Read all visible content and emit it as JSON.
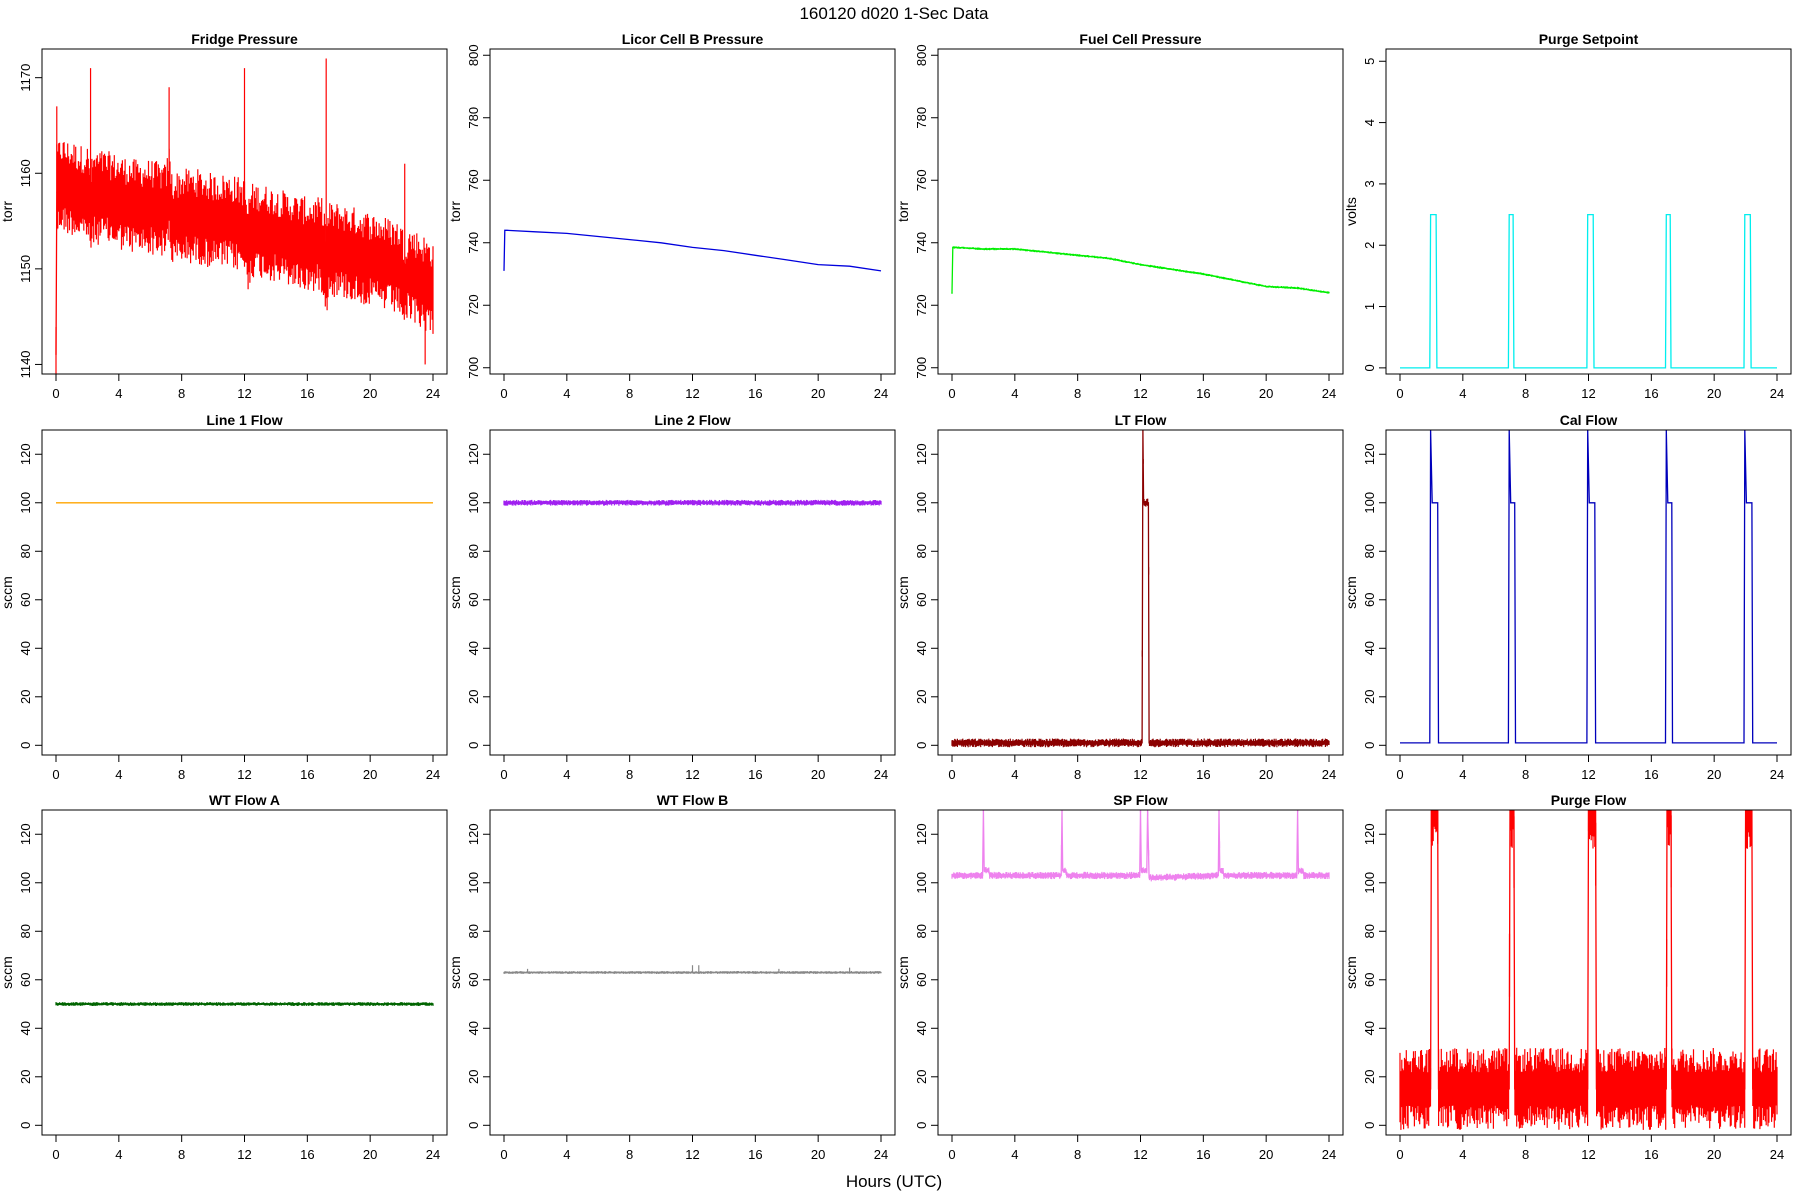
{
  "figure": {
    "title": "160120    d020    1-Sec Data",
    "xlabel": "Hours (UTC)"
  },
  "chart_data": [
    {
      "type": "line",
      "title": "Fridge Pressure",
      "ylabel": "torr",
      "color": "#ff0000",
      "xlim": [
        0,
        24
      ],
      "ylim": [
        1139,
        1173
      ],
      "yticks": [
        1140,
        1150,
        1160,
        1170
      ],
      "x": [
        0,
        0.05,
        0.3,
        0.7,
        1,
        1.5,
        2,
        2.2,
        2.4,
        3,
        4,
        5,
        6,
        7,
        7.2,
        7.4,
        8,
        9,
        10,
        11,
        12,
        12.2,
        12.4,
        13,
        14,
        15,
        16,
        17,
        17.2,
        17.4,
        18,
        19,
        20,
        21,
        22,
        22.2,
        22.4,
        23,
        23.5,
        24
      ],
      "y": [
        1141,
        1158,
        1159,
        1158.5,
        1158.5,
        1158,
        1158,
        1156,
        1157.5,
        1157.5,
        1157,
        1156.5,
        1156.5,
        1156,
        1158,
        1155,
        1155.5,
        1155.5,
        1155,
        1155,
        1154.5,
        1152,
        1154,
        1154,
        1153.5,
        1153,
        1152.5,
        1152.5,
        1150,
        1152,
        1152,
        1151.5,
        1151,
        1150.5,
        1150,
        1148,
        1149.5,
        1149,
        1148.5,
        1148
      ],
      "band": 5,
      "spikes": [
        [
          2.2,
          1171
        ],
        [
          7.2,
          1169
        ],
        [
          12,
          1171
        ],
        [
          17.2,
          1172
        ],
        [
          22.2,
          1161
        ],
        [
          23.5,
          1140
        ],
        [
          0.05,
          1167
        ]
      ]
    },
    {
      "type": "line",
      "title": "Licor Cell B Pressure",
      "ylabel": "torr",
      "color": "#0000dd",
      "xlim": [
        0,
        24
      ],
      "ylim": [
        698,
        802
      ],
      "yticks": [
        700,
        720,
        740,
        760,
        780,
        800
      ],
      "x": [
        0,
        0.05,
        0.2,
        2,
        4,
        6,
        8,
        10,
        12,
        14,
        16,
        18,
        20,
        22,
        24
      ],
      "y": [
        731,
        744,
        744,
        743.5,
        743,
        742,
        741,
        740,
        738.5,
        737.5,
        736,
        734.5,
        733,
        732.5,
        731
      ],
      "band": 0
    },
    {
      "type": "line",
      "title": "Fuel Cell Pressure",
      "ylabel": "torr",
      "color": "#00ee00",
      "xlim": [
        0,
        24
      ],
      "ylim": [
        698,
        802
      ],
      "yticks": [
        700,
        720,
        740,
        760,
        780,
        800
      ],
      "x": [
        0,
        0.05,
        0.2,
        2,
        4,
        6,
        8,
        10,
        12,
        14,
        16,
        18,
        20,
        22,
        24
      ],
      "y": [
        724,
        738.5,
        738.5,
        738,
        738,
        737,
        736,
        735,
        733,
        731.5,
        730,
        728,
        726,
        725.5,
        724
      ],
      "band": 0.4
    },
    {
      "type": "line",
      "title": "Purge Setpoint",
      "ylabel": "volts",
      "color": "#00eeee",
      "xlim": [
        0,
        24
      ],
      "ylim": [
        -0.1,
        5.2
      ],
      "yticks": [
        0,
        1,
        2,
        3,
        4,
        5
      ],
      "x": [
        0,
        1.9,
        1.95,
        2.3,
        2.35,
        6.9,
        6.95,
        7.2,
        7.25,
        11.9,
        11.95,
        12.3,
        12.35,
        16.9,
        16.95,
        17.2,
        17.25,
        21.9,
        21.95,
        22.3,
        22.35,
        24
      ],
      "y": [
        0,
        0,
        2.5,
        2.5,
        0,
        0,
        2.5,
        2.5,
        0,
        0,
        2.5,
        2.5,
        0,
        0,
        2.5,
        2.5,
        0,
        0,
        2.5,
        2.5,
        0,
        0
      ],
      "band": 0
    },
    {
      "type": "line",
      "title": "Line 1 Flow",
      "ylabel": "sccm",
      "color": "#ffa500",
      "xlim": [
        0,
        24
      ],
      "ylim": [
        -4,
        130
      ],
      "yticks": [
        0,
        20,
        40,
        60,
        80,
        100,
        120
      ],
      "x": [
        0,
        24
      ],
      "y": [
        100,
        100
      ],
      "band": 0
    },
    {
      "type": "line",
      "title": "Line 2 Flow",
      "ylabel": "sccm",
      "color": "#a020f0",
      "xlim": [
        0,
        24
      ],
      "ylim": [
        -4,
        130
      ],
      "yticks": [
        0,
        20,
        40,
        60,
        80,
        100,
        120
      ],
      "x": [
        0,
        24
      ],
      "y": [
        100,
        100
      ],
      "band": 1.2
    },
    {
      "type": "line",
      "title": "LT Flow",
      "ylabel": "sccm",
      "color": "#8b0000",
      "xlim": [
        0,
        24
      ],
      "ylim": [
        -4,
        130
      ],
      "yticks": [
        0,
        20,
        40,
        60,
        80,
        100,
        120
      ],
      "x": [
        0,
        12.1,
        12.15,
        12.2,
        12.5,
        12.55,
        24
      ],
      "y": [
        1,
        1,
        130,
        100,
        100,
        1,
        1
      ],
      "band": 1.8
    },
    {
      "type": "line",
      "title": "Cal Flow",
      "ylabel": "sccm",
      "color": "#0000bb",
      "xlim": [
        0,
        24
      ],
      "ylim": [
        -4,
        130
      ],
      "yticks": [
        0,
        20,
        40,
        60,
        80,
        100,
        120
      ],
      "x": [
        0,
        1.9,
        1.95,
        2.05,
        2.4,
        2.45,
        6.9,
        6.95,
        7.05,
        7.3,
        7.35,
        11.9,
        11.95,
        12.05,
        12.4,
        12.45,
        12.55,
        16.9,
        16.95,
        17.05,
        17.3,
        17.35,
        21.9,
        21.95,
        22.05,
        22.4,
        22.45,
        24
      ],
      "y": [
        1,
        1,
        130,
        100,
        100,
        1,
        1,
        130,
        100,
        100,
        1,
        1,
        130,
        100,
        100,
        1,
        1,
        1,
        130,
        100,
        100,
        1,
        1,
        130,
        100,
        100,
        1,
        1
      ],
      "band": 0
    },
    {
      "type": "line",
      "title": "WT Flow A",
      "ylabel": "sccm",
      "color": "#006400",
      "xlim": [
        0,
        24
      ],
      "ylim": [
        -4,
        130
      ],
      "yticks": [
        0,
        20,
        40,
        60,
        80,
        100,
        120
      ],
      "x": [
        0,
        24
      ],
      "y": [
        50,
        50
      ],
      "band": 0.8
    },
    {
      "type": "line",
      "title": "WT Flow B",
      "ylabel": "sccm",
      "color": "#888888",
      "xlim": [
        0,
        24
      ],
      "ylim": [
        -4,
        130
      ],
      "yticks": [
        0,
        20,
        40,
        60,
        80,
        100,
        120
      ],
      "x": [
        0,
        24
      ],
      "y": [
        63,
        63
      ],
      "band": 0.6,
      "spikes": [
        [
          12,
          66
        ],
        [
          12.4,
          66
        ],
        [
          22,
          65
        ],
        [
          1.5,
          64.5
        ],
        [
          17.5,
          64.5
        ]
      ]
    },
    {
      "type": "line",
      "title": "SP Flow",
      "ylabel": "sccm",
      "color": "#ee82ee",
      "xlim": [
        0,
        24
      ],
      "ylim": [
        -4,
        130
      ],
      "yticks": [
        0,
        20,
        40,
        60,
        80,
        100,
        120
      ],
      "x": [
        0,
        1.95,
        2.0,
        2.05,
        2.35,
        2.4,
        6.95,
        7.0,
        7.05,
        7.25,
        7.3,
        11.95,
        12.0,
        12.05,
        12.4,
        12.45,
        12.55,
        16.95,
        17.0,
        17.05,
        17.25,
        17.3,
        21.95,
        22.0,
        22.05,
        22.35,
        22.4,
        24
      ],
      "y": [
        103,
        103,
        130,
        105,
        105,
        103,
        103,
        130,
        105,
        105,
        103,
        103,
        130,
        105,
        105,
        130,
        102,
        103,
        130,
        105,
        105,
        103,
        103,
        130,
        105,
        105,
        103,
        103
      ],
      "band": 1.5
    },
    {
      "type": "line",
      "title": "Purge Flow",
      "ylabel": "sccm",
      "color": "#ff0000",
      "xlim": [
        0,
        24
      ],
      "ylim": [
        -4,
        130
      ],
      "yticks": [
        0,
        20,
        40,
        60,
        80,
        100,
        120
      ],
      "x": [
        0,
        1.95,
        2.0,
        2.4,
        2.45,
        6.95,
        7.0,
        7.25,
        7.3,
        11.95,
        12.0,
        12.45,
        12.5,
        16.95,
        17.0,
        17.25,
        17.3,
        21.95,
        22.0,
        22.4,
        22.45,
        24
      ],
      "y": [
        15,
        15,
        130,
        130,
        15,
        15,
        130,
        130,
        15,
        15,
        130,
        130,
        15,
        15,
        130,
        130,
        15,
        15,
        130,
        130,
        15,
        15
      ],
      "band": 17
    }
  ],
  "xticks": [
    0,
    4,
    8,
    12,
    16,
    20,
    24
  ]
}
